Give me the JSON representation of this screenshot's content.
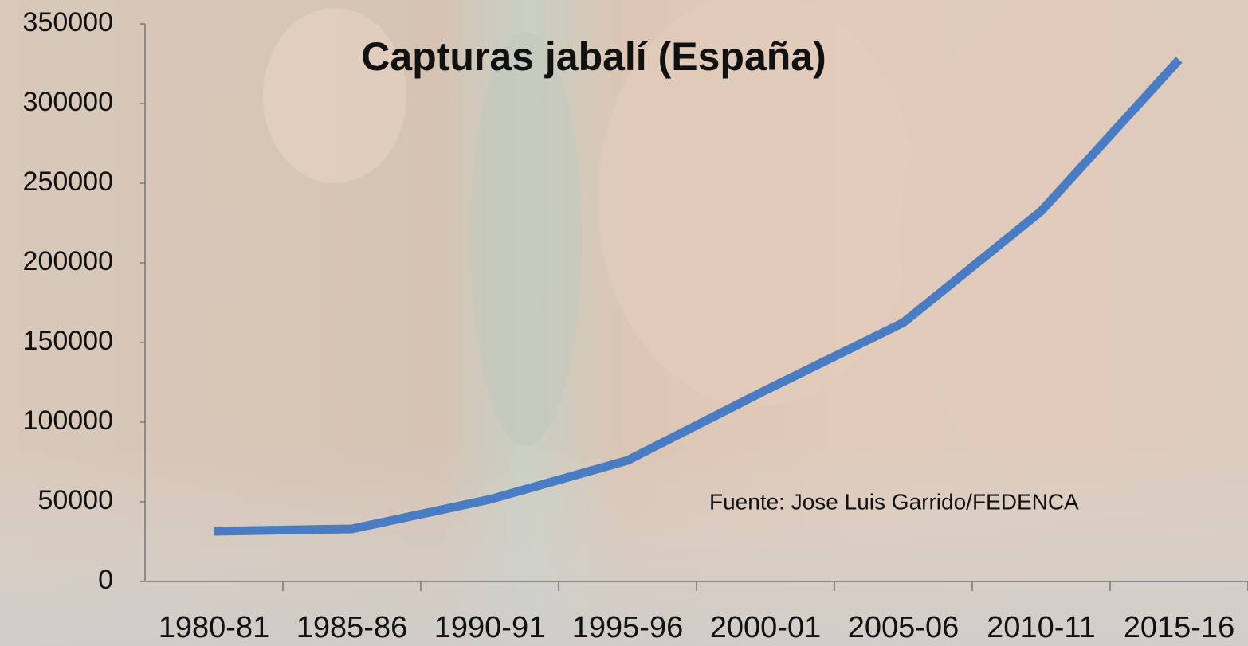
{
  "chart_data": {
    "type": "line",
    "title": "Capturas jabalí (España)",
    "annotation": "Fuente: Jose Luis Garrido/FEDENCA",
    "categories": [
      "1980-81",
      "1985-86",
      "1990-91",
      "1995-96",
      "2000-01",
      "2005-06",
      "2010-11",
      "2015-16"
    ],
    "values": [
      31500,
      33000,
      51500,
      76000,
      120000,
      162500,
      232500,
      327500
    ],
    "color": "#4a7cc4",
    "ylim": [
      0,
      350000
    ],
    "yticks": [
      0,
      50000,
      100000,
      150000,
      200000,
      250000,
      300000,
      350000
    ],
    "grid": false
  }
}
